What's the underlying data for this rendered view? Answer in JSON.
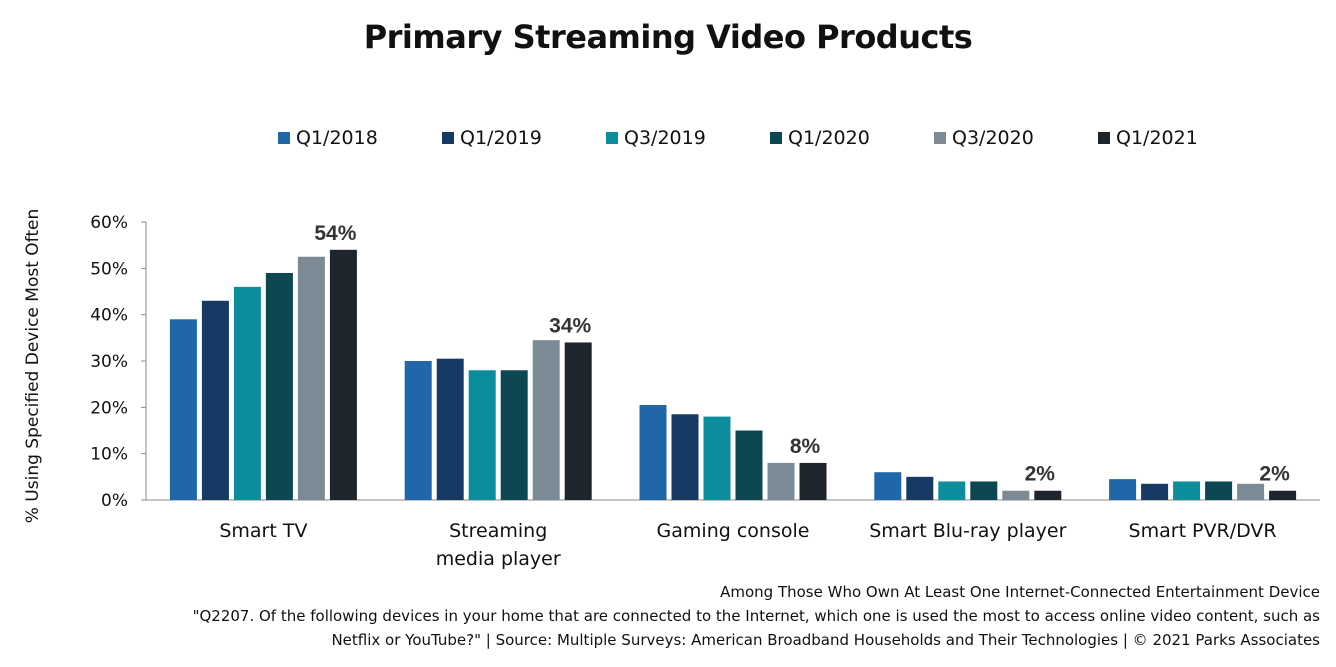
{
  "title": "Primary Streaming Video Products",
  "chart_data": {
    "type": "bar",
    "title": "Primary Streaming Video Products",
    "ylabel": "% Using Specified Device Most Often",
    "xlabel": "",
    "ylim": [
      0,
      60
    ],
    "yticks": [
      "0%",
      "10%",
      "20%",
      "30%",
      "40%",
      "50%",
      "60%"
    ],
    "grid": false,
    "legend_position": "top",
    "categories": [
      [
        "Smart TV"
      ],
      [
        "Streaming",
        "media player"
      ],
      [
        "Gaming console"
      ],
      [
        "Smart Blu-ray player"
      ],
      [
        "Smart PVR/DVR"
      ]
    ],
    "series": [
      {
        "name": "Q1/2018",
        "color": "#1f67a8",
        "values": [
          39,
          30,
          20.5,
          6,
          4.5
        ]
      },
      {
        "name": "Q1/2019",
        "color": "#163a63",
        "values": [
          43,
          30.5,
          18.5,
          5,
          3.5
        ]
      },
      {
        "name": "Q3/2019",
        "color": "#0b8d9c",
        "values": [
          46,
          28,
          18,
          4,
          4
        ]
      },
      {
        "name": "Q1/2020",
        "color": "#0d4852",
        "values": [
          49,
          28,
          15,
          4,
          4
        ]
      },
      {
        "name": "Q3/2020",
        "color": "#7b8a94",
        "values": [
          52.5,
          34.5,
          8,
          2,
          3.5
        ]
      },
      {
        "name": "Q1/2021",
        "color": "#1f252d",
        "values": [
          54,
          34,
          8,
          2,
          2
        ]
      }
    ],
    "data_labels": [
      "54%",
      "34%",
      "8%",
      "2%",
      "2%"
    ]
  },
  "footer": {
    "line1": "Among Those Who Own At Least One Internet-Connected  Entertainment Device",
    "line2": "\"Q2207. Of the following devices in your home that are connected to the Internet, which one is used the most to access online video content, such as",
    "line3": "Netflix or YouTube?\" | Source: Multiple Surveys: American Broadband Households and Their Technologies | © 2021 Parks Associates"
  }
}
